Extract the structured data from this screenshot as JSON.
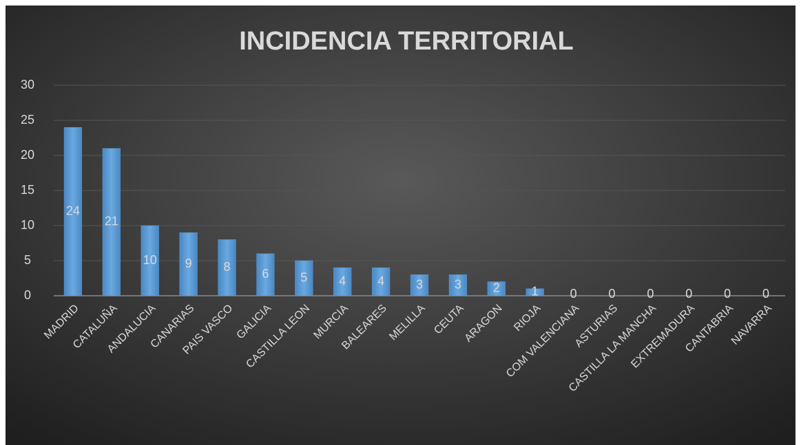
{
  "chart_data": {
    "type": "bar",
    "title": "INCIDENCIA TERRITORIAL",
    "categories": [
      "MADRID",
      "CATALUÑA",
      "ANDALUCIA",
      "CANARIAS",
      "PAIS VASCO",
      "GALICIA",
      "CASTILLA LEON",
      "MURCIA",
      "BALEARES",
      "MELILLA",
      "CEUTA",
      "ARAGON",
      "RIOJA",
      "COM VALENCIANA",
      "ASTURIAS",
      "CASTILLA LA MANCHA",
      "EXTREMADURA",
      "CANTABRIA",
      "NAVARRA"
    ],
    "values": [
      24,
      21,
      10,
      9,
      8,
      6,
      5,
      4,
      4,
      3,
      3,
      2,
      1,
      0,
      0,
      0,
      0,
      0,
      0
    ],
    "color": "#5b9bd5",
    "ylim": [
      0,
      30
    ],
    "yticks": [
      0,
      5,
      10,
      15,
      20,
      25,
      30
    ],
    "grid": true
  }
}
